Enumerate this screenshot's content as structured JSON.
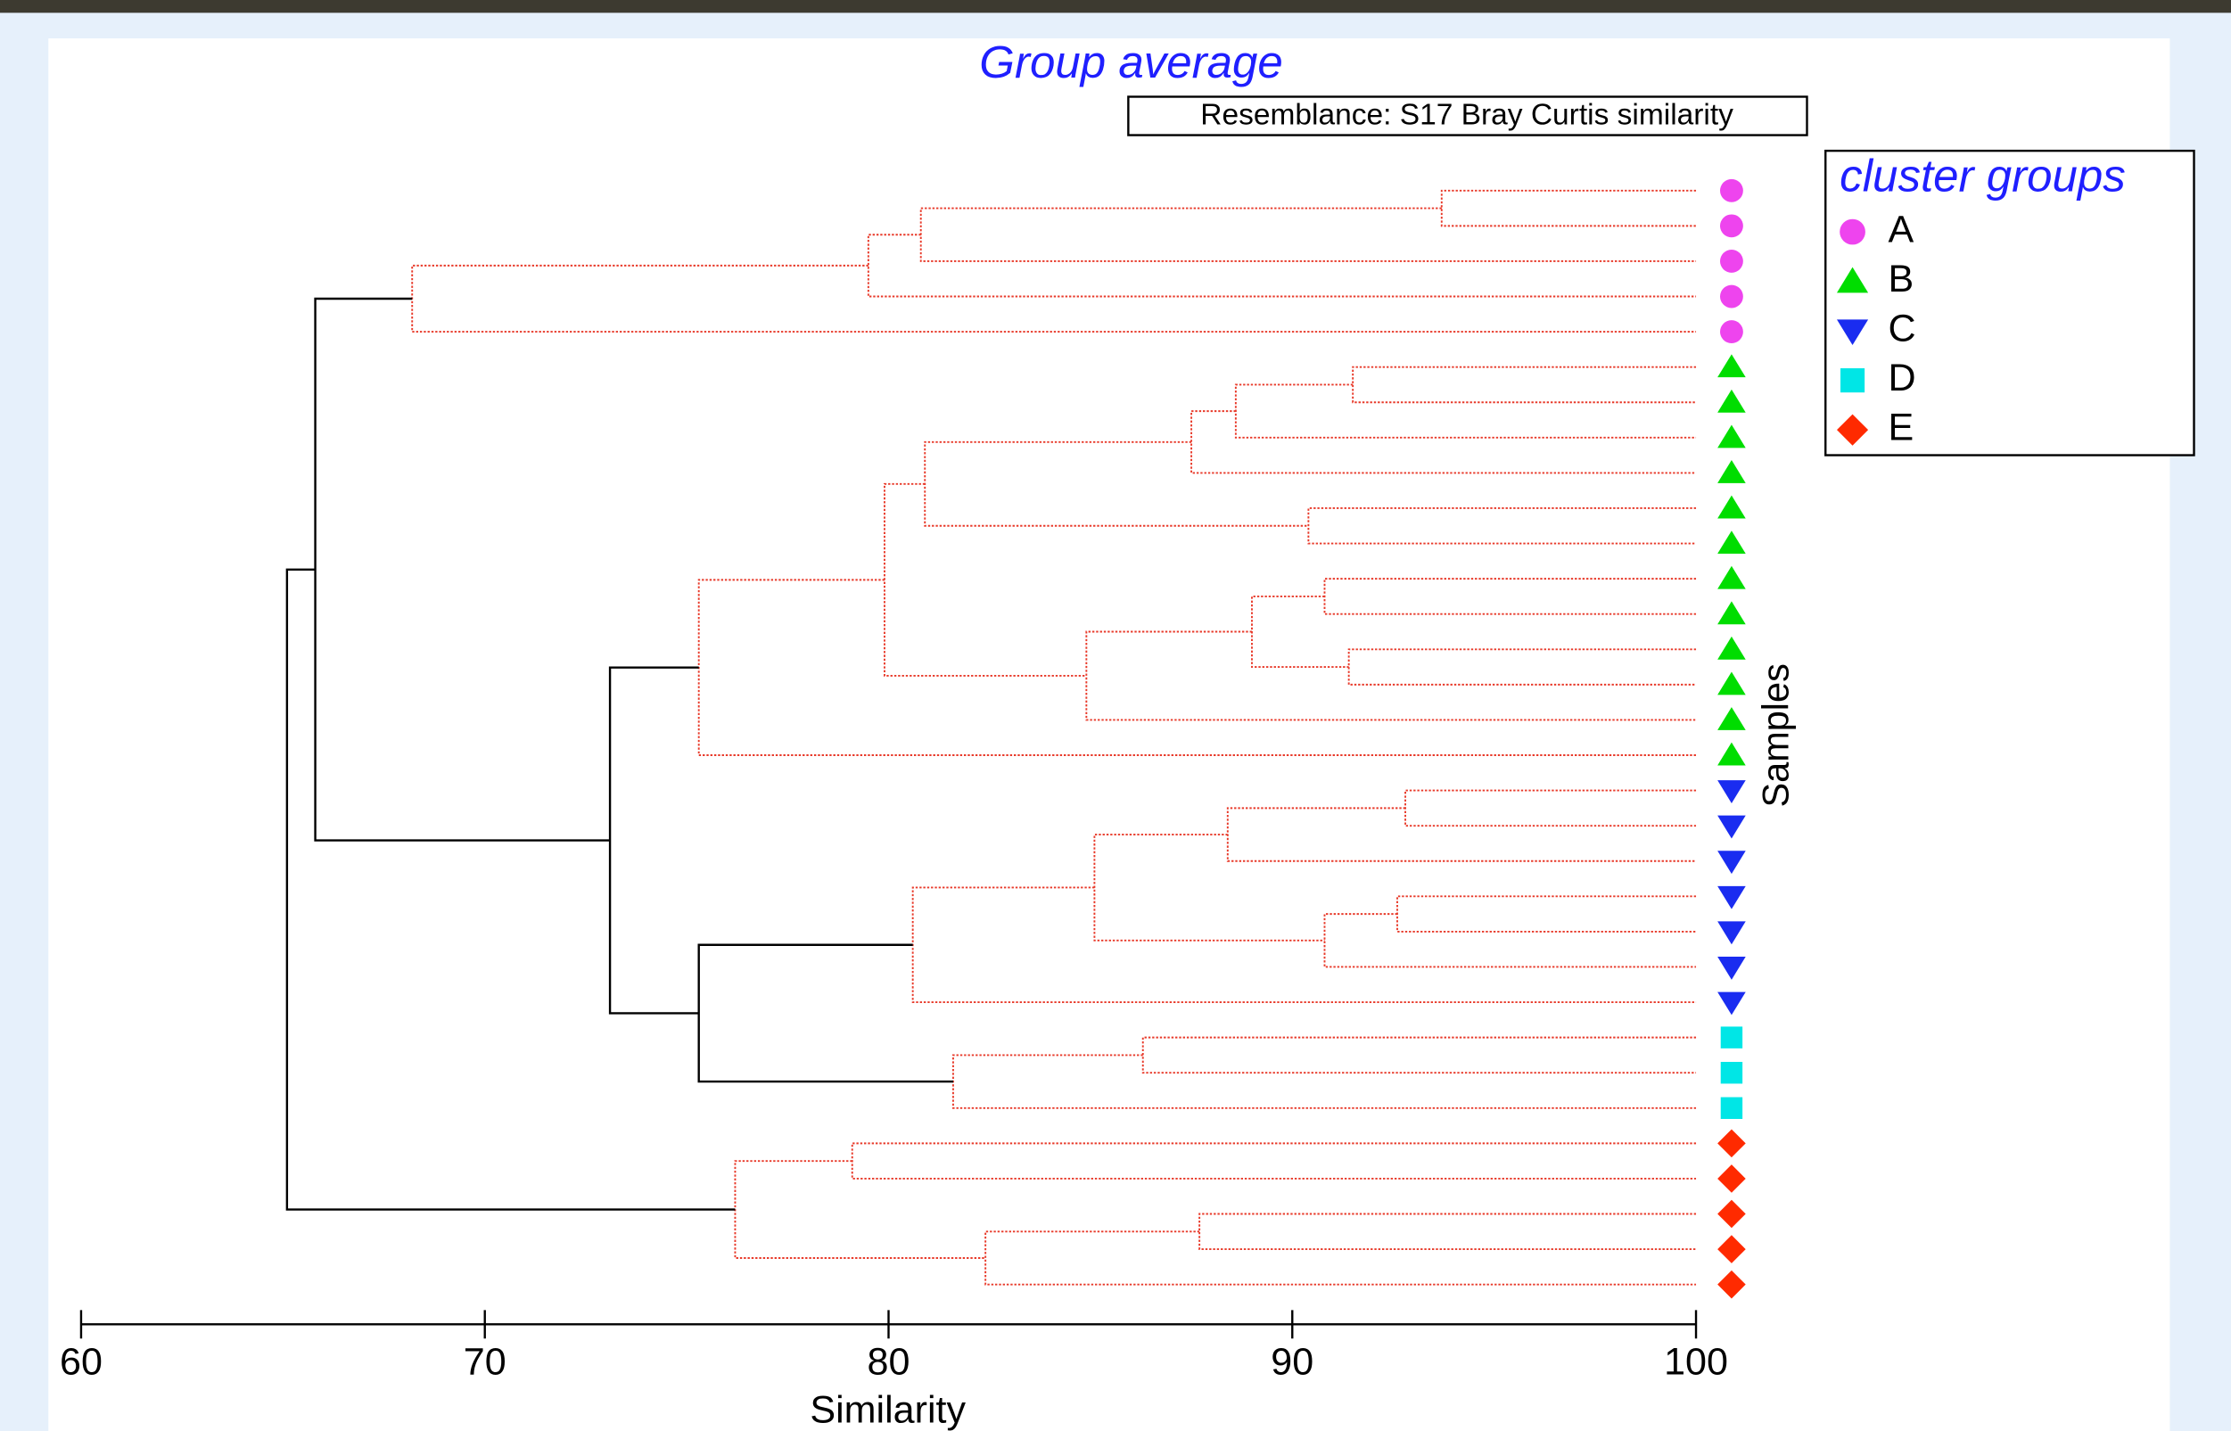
{
  "chart_data": {
    "type": "dendrogram",
    "title": "Group average",
    "subtitle": "Resemblance: S17 Bray Curtis similarity",
    "x_label": "Similarity",
    "y_label": "Samples",
    "xlim": [
      60,
      100
    ],
    "xticks": [
      60,
      70,
      80,
      90,
      100
    ],
    "legend_title": "cluster groups",
    "legend_position": "upper right",
    "groups": [
      {
        "name": "A",
        "color": "#ee44ee",
        "marker": "circle"
      },
      {
        "name": "B",
        "color": "#00dd00",
        "marker": "triangle-up"
      },
      {
        "name": "C",
        "color": "#1a2cf0",
        "marker": "triangle-down"
      },
      {
        "name": "D",
        "color": "#00e6e6",
        "marker": "square"
      },
      {
        "name": "E",
        "color": "#ff2a00",
        "marker": "diamond"
      }
    ],
    "leaves": [
      "A",
      "A",
      "A",
      "A",
      "A",
      "B",
      "B",
      "B",
      "B",
      "B",
      "B",
      "B",
      "B",
      "B",
      "B",
      "B",
      "B",
      "C",
      "C",
      "C",
      "C",
      "C",
      "C",
      "C",
      "D",
      "D",
      "D",
      "E",
      "E",
      "E",
      "E",
      "E"
    ],
    "merges": [
      {
        "children": [
          0,
          1
        ],
        "similarity": 93.7,
        "color": "#e83a2a"
      },
      {
        "children": [
          32,
          2
        ],
        "similarity": 80.8,
        "color": "#e83a2a"
      },
      {
        "children": [
          33,
          3
        ],
        "similarity": 79.5,
        "color": "#e83a2a"
      },
      {
        "children": [
          34,
          4
        ],
        "similarity": 68.2,
        "color": "#e83a2a"
      },
      {
        "children": [
          5,
          6
        ],
        "similarity": 91.5,
        "color": "#e83a2a"
      },
      {
        "children": [
          36,
          7
        ],
        "similarity": 88.6,
        "color": "#e83a2a"
      },
      {
        "children": [
          37,
          8
        ],
        "similarity": 87.5,
        "color": "#e83a2a"
      },
      {
        "children": [
          9,
          10
        ],
        "similarity": 90.4,
        "color": "#e83a2a"
      },
      {
        "children": [
          38,
          39
        ],
        "similarity": 80.9,
        "color": "#e83a2a"
      },
      {
        "children": [
          11,
          12
        ],
        "similarity": 90.8,
        "color": "#e83a2a"
      },
      {
        "children": [
          13,
          14
        ],
        "similarity": 91.4,
        "color": "#e83a2a"
      },
      {
        "children": [
          41,
          42
        ],
        "similarity": 89.0,
        "color": "#e83a2a"
      },
      {
        "children": [
          43,
          15
        ],
        "similarity": 84.9,
        "color": "#e83a2a"
      },
      {
        "children": [
          40,
          44
        ],
        "similarity": 79.9,
        "color": "#e83a2a"
      },
      {
        "children": [
          45,
          16
        ],
        "similarity": 75.3,
        "color": "#e83a2a"
      },
      {
        "children": [
          17,
          18
        ],
        "similarity": 92.8,
        "color": "#e83a2a"
      },
      {
        "children": [
          47,
          19
        ],
        "similarity": 88.4,
        "color": "#e83a2a"
      },
      {
        "children": [
          20,
          21
        ],
        "similarity": 92.6,
        "color": "#e83a2a"
      },
      {
        "children": [
          49,
          22
        ],
        "similarity": 90.8,
        "color": "#e83a2a"
      },
      {
        "children": [
          48,
          50
        ],
        "similarity": 85.1,
        "color": "#e83a2a"
      },
      {
        "children": [
          51,
          23
        ],
        "similarity": 80.6,
        "color": "#e83a2a"
      },
      {
        "children": [
          24,
          25
        ],
        "similarity": 86.3,
        "color": "#e83a2a"
      },
      {
        "children": [
          53,
          26
        ],
        "similarity": 81.6,
        "color": "#e83a2a"
      },
      {
        "children": [
          52,
          54
        ],
        "similarity": 75.3,
        "color": "#000000"
      },
      {
        "children": [
          46,
          55
        ],
        "similarity": 73.1,
        "color": "#000000"
      },
      {
        "children": [
          35,
          56
        ],
        "similarity": 65.8,
        "color": "#000000"
      },
      {
        "children": [
          27,
          28
        ],
        "similarity": 79.1,
        "color": "#e83a2a"
      },
      {
        "children": [
          29,
          30
        ],
        "similarity": 87.7,
        "color": "#e83a2a"
      },
      {
        "children": [
          59,
          31
        ],
        "similarity": 82.4,
        "color": "#e83a2a"
      },
      {
        "children": [
          58,
          60
        ],
        "similarity": 76.2,
        "color": "#e83a2a"
      },
      {
        "children": [
          57,
          61
        ],
        "similarity": 65.1,
        "color": "#000000"
      }
    ]
  }
}
